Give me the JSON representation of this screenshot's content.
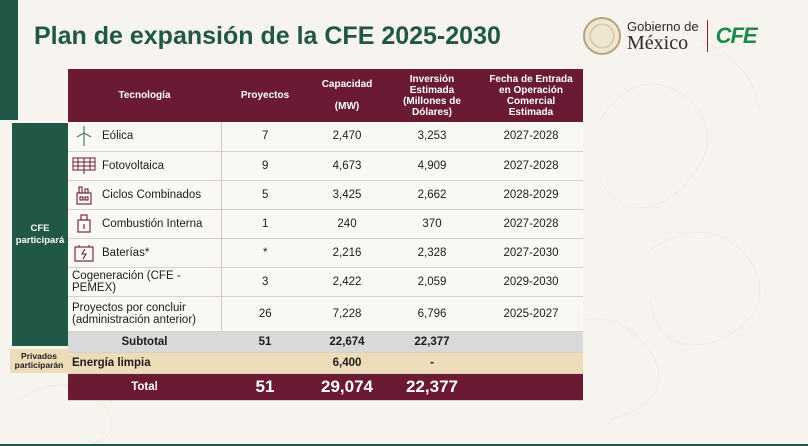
{
  "title": "Plan de expansión de la CFE 2025-2030",
  "logo": {
    "gob_line1": "Gobierno de",
    "gob_line2": "México",
    "cfe": "CFE"
  },
  "colors": {
    "green": "#215747",
    "maroon": "#6a1b33",
    "beige": "#ecdcb8"
  },
  "table": {
    "headers": {
      "tech": "Tecnología",
      "proj": "Proyectos",
      "cap": "Capacidad\n\n(MW)",
      "inv": "Inversión\nEstimada\n(Millones de\nDólares)",
      "fecha": "Fecha de Entrada\nen Operación\nComercial\nEstimada"
    },
    "rows": [
      {
        "icon": "wind-turbine-icon",
        "tech": "Eólica",
        "proj": "7",
        "cap": "2,470",
        "inv": "3,253",
        "fecha": "2027-2028"
      },
      {
        "icon": "solar-panel-icon",
        "tech": "Fotovoltaica",
        "proj": "9",
        "cap": "4,673",
        "inv": "4,909",
        "fecha": "2027-2028"
      },
      {
        "icon": "power-plant-icon",
        "tech": "Ciclos Combinados",
        "proj": "5",
        "cap": "3,425",
        "inv": "2,662",
        "fecha": "2028-2029"
      },
      {
        "icon": "engine-icon",
        "tech": "Combustión Interna",
        "proj": "1",
        "cap": "240",
        "inv": "370",
        "fecha": "2027-2028"
      },
      {
        "icon": "battery-icon",
        "tech": "Baterías*",
        "proj": "*",
        "cap": "2,216",
        "inv": "2,328",
        "fecha": "2027-2030"
      },
      {
        "tech": "Cogeneración (CFE - PEMEX)",
        "proj": "3",
        "cap": "2,422",
        "inv": "2,059",
        "fecha": "2029-2030"
      },
      {
        "tech": "Proyectos por concluir\n(administración anterior)",
        "proj": "26",
        "cap": "7,228",
        "inv": "6,796",
        "fecha": "2025-2027"
      }
    ],
    "subtotal": {
      "label": "Subtotal",
      "proj": "51",
      "cap": "22,674",
      "inv": "22,377"
    },
    "energia": {
      "label": "Energía limpia",
      "cap": "6,400",
      "inv": "-"
    },
    "total": {
      "label": "Total",
      "proj": "51",
      "cap": "29,074",
      "inv": "22,377"
    }
  },
  "side": {
    "cfe": "CFE\nparticipará",
    "priv": "Privados\nparticiparán"
  }
}
